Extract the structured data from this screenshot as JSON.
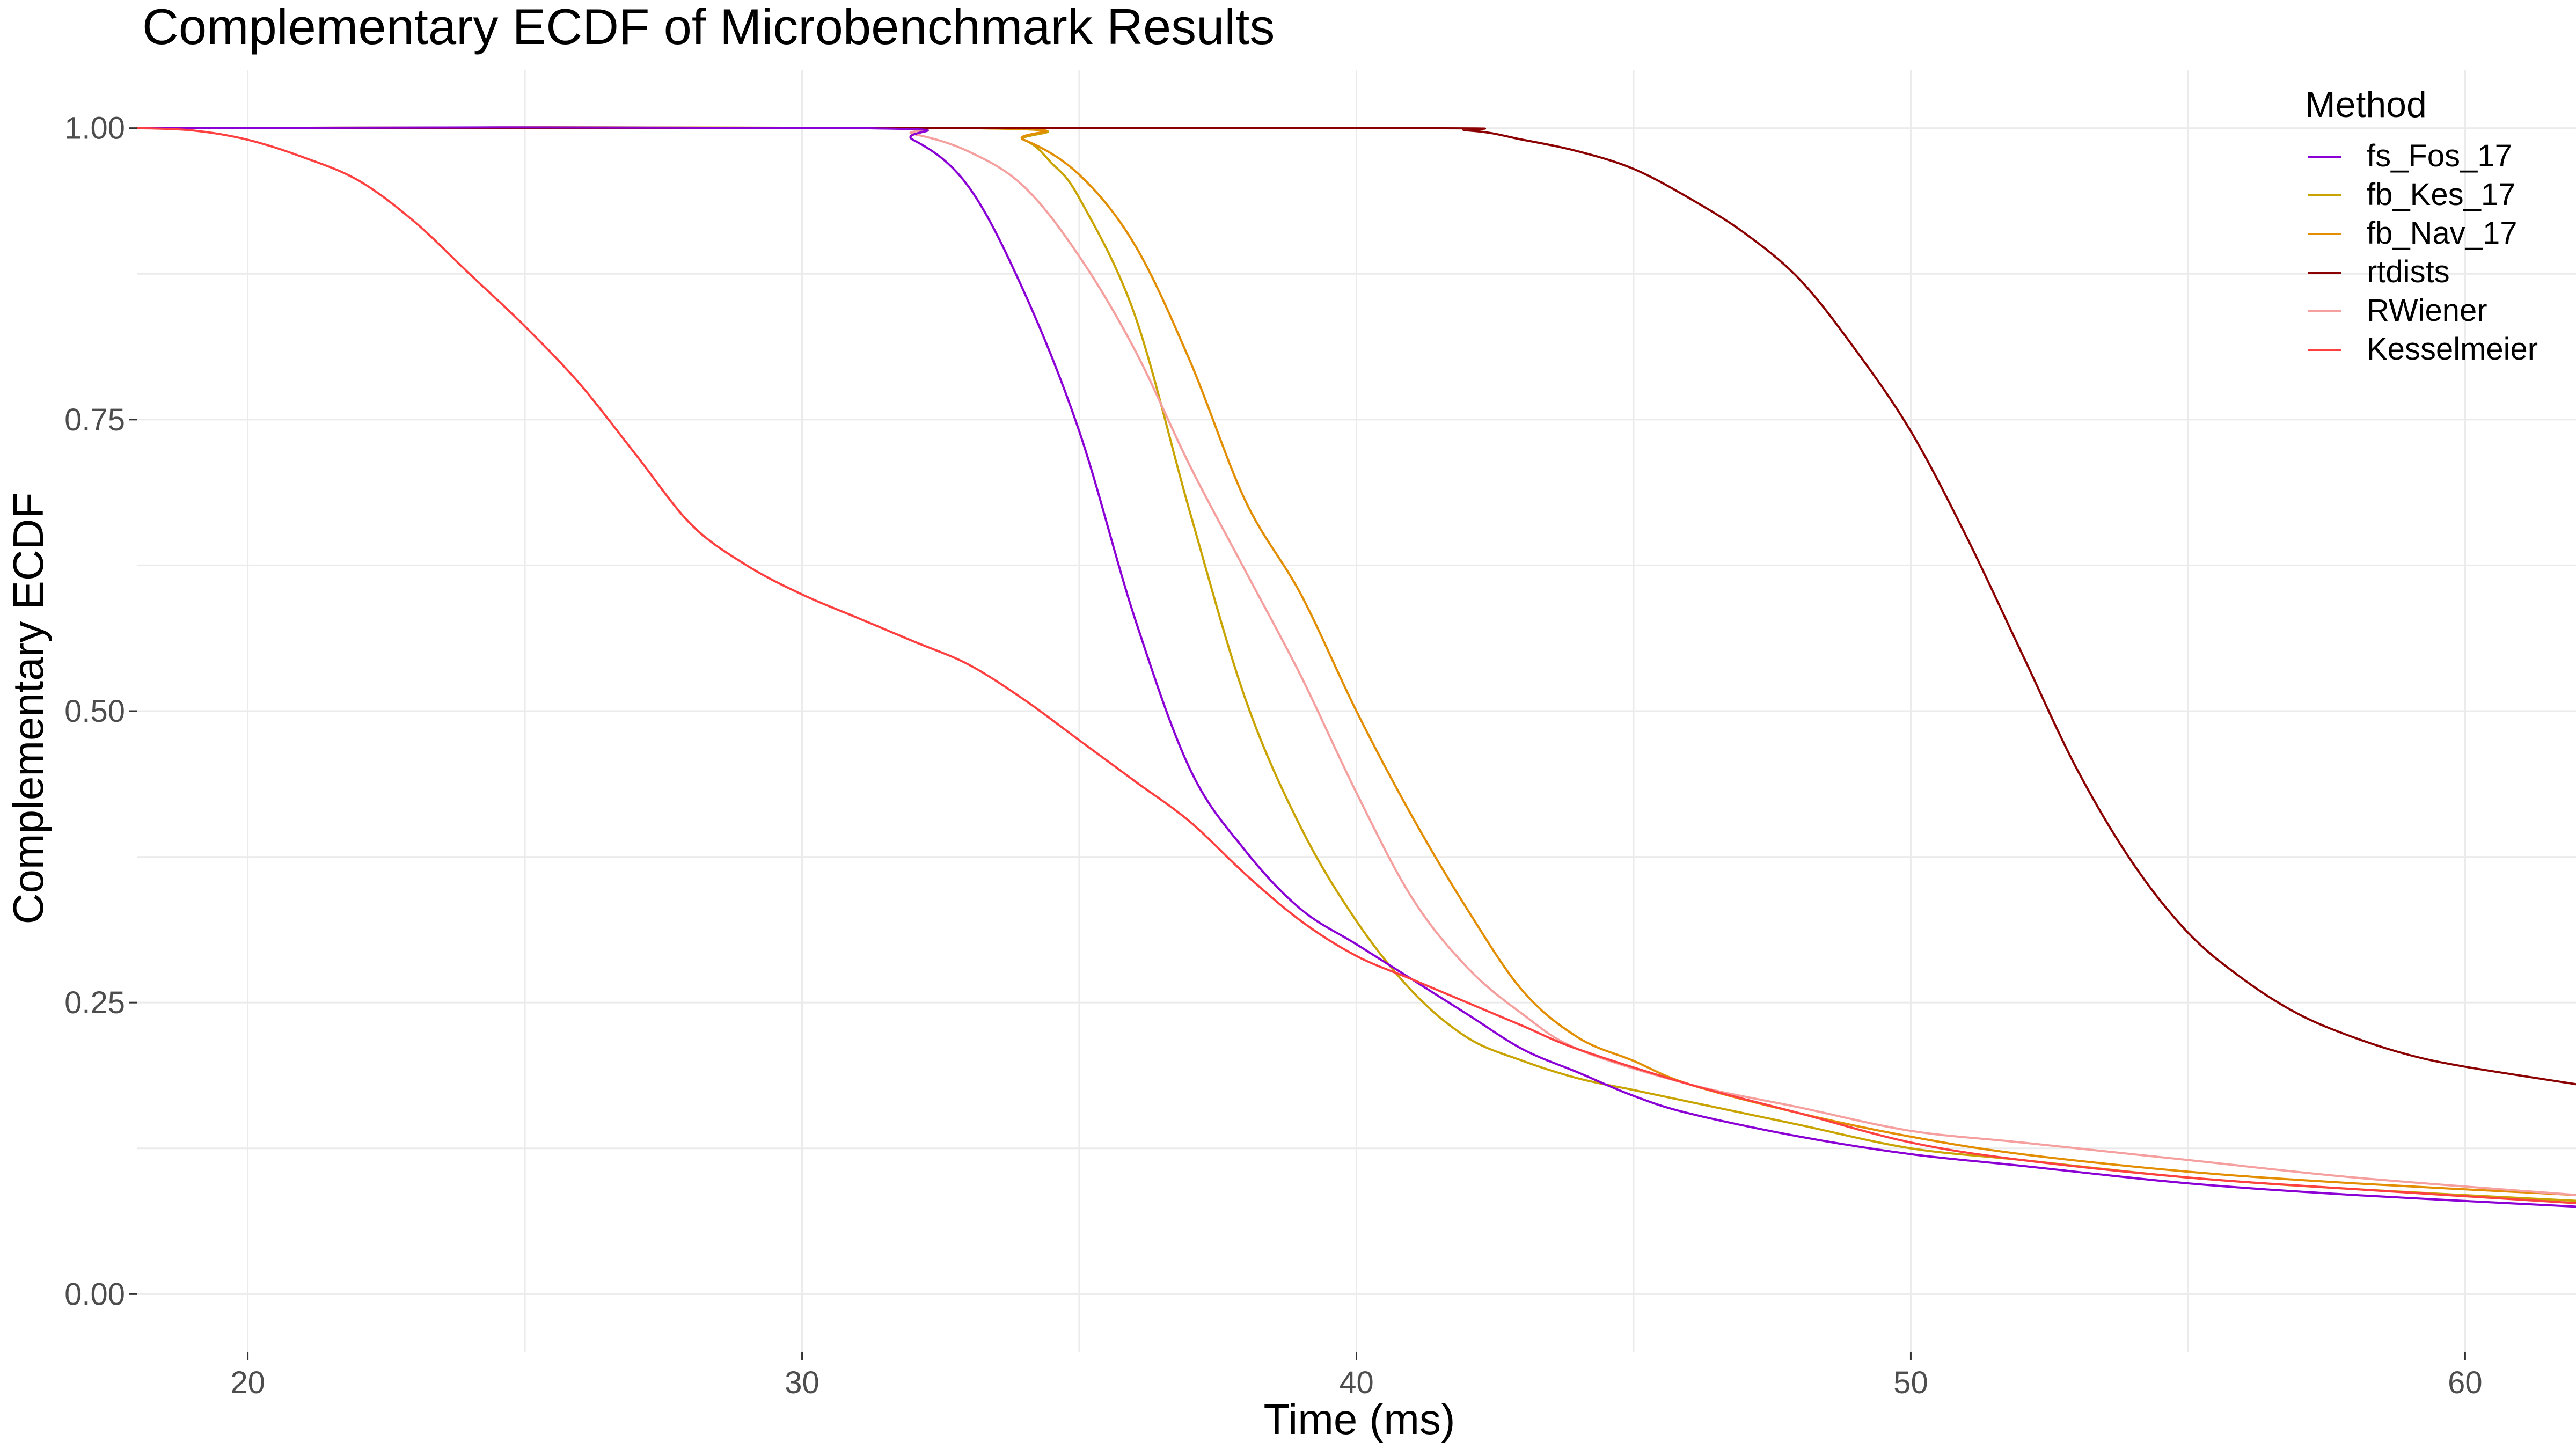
{
  "chart_data": {
    "type": "line",
    "title": "Complementary ECDF of Microbenchmark Results",
    "xlabel": "Time (ms)",
    "ylabel": "Complementary ECDF",
    "xlim": [
      18,
      62
    ],
    "ylim": [
      -0.05,
      1.05
    ],
    "x_ticks": [
      20,
      30,
      40,
      50,
      60
    ],
    "x_tick_labels": [
      "20",
      "30",
      "40",
      "50",
      "60"
    ],
    "y_ticks": [
      0,
      0.25,
      0.5,
      0.75,
      1
    ],
    "y_tick_labels": [
      "0.00",
      "0.25",
      "0.50",
      "0.75",
      "1.00"
    ],
    "grid": true,
    "legend": {
      "title": "Method",
      "position": "top-right"
    },
    "series": [
      {
        "name": "fs_Fos_17",
        "color": "#8b00d4",
        "x": [
          18,
          31,
          32,
          33,
          34,
          35,
          36,
          37,
          38,
          39,
          40,
          41,
          42,
          43,
          44,
          45,
          46,
          48,
          50,
          52,
          55,
          58,
          62
        ],
        "y": [
          1.0,
          1.0,
          0.99,
          0.95,
          0.86,
          0.74,
          0.58,
          0.45,
          0.38,
          0.33,
          0.3,
          0.27,
          0.24,
          0.21,
          0.19,
          0.17,
          0.155,
          0.135,
          0.12,
          0.11,
          0.095,
          0.085,
          0.075
        ]
      },
      {
        "name": "fb_Kes_17",
        "color": "#c9a400",
        "x": [
          18,
          33,
          34,
          34.5,
          35,
          36,
          37,
          38,
          39,
          40,
          41,
          42,
          43,
          44,
          45,
          46,
          48,
          50,
          52,
          55,
          58,
          62
        ],
        "y": [
          1.0,
          1.0,
          0.99,
          0.97,
          0.94,
          0.84,
          0.67,
          0.51,
          0.4,
          0.32,
          0.26,
          0.22,
          0.2,
          0.185,
          0.175,
          0.165,
          0.145,
          0.125,
          0.115,
          0.1,
          0.09,
          0.08
        ]
      },
      {
        "name": "fb_Nav_17",
        "color": "#e38d00",
        "x": [
          18,
          33,
          34,
          35,
          36,
          37,
          38,
          39,
          40,
          41,
          42,
          43,
          44,
          45,
          46,
          48,
          50,
          52,
          55,
          58,
          62
        ],
        "y": [
          1.0,
          1.0,
          0.99,
          0.96,
          0.9,
          0.8,
          0.68,
          0.6,
          0.5,
          0.41,
          0.33,
          0.26,
          0.22,
          0.2,
          0.18,
          0.155,
          0.135,
          0.12,
          0.105,
          0.095,
          0.085
        ]
      },
      {
        "name": "rtdists",
        "color": "#8b0000",
        "x": [
          18,
          40,
          42,
          43,
          44,
          45,
          46,
          47,
          48,
          49,
          50,
          51,
          52,
          53,
          54,
          55,
          56,
          57,
          58,
          59,
          60,
          62
        ],
        "y": [
          1.0,
          1.0,
          0.998,
          0.99,
          0.98,
          0.965,
          0.94,
          0.91,
          0.87,
          0.81,
          0.74,
          0.65,
          0.55,
          0.45,
          0.37,
          0.31,
          0.27,
          0.24,
          0.22,
          0.205,
          0.195,
          0.18
        ]
      },
      {
        "name": "RWiener",
        "color": "#f59f9f",
        "x": [
          18,
          31,
          32,
          33,
          34,
          35,
          36,
          37,
          38,
          39,
          40,
          41,
          42,
          43,
          44,
          46,
          48,
          50,
          52,
          55,
          58,
          62
        ],
        "y": [
          1.0,
          1.0,
          0.995,
          0.98,
          0.95,
          0.89,
          0.81,
          0.71,
          0.62,
          0.53,
          0.43,
          0.34,
          0.28,
          0.24,
          0.21,
          0.18,
          0.16,
          0.14,
          0.13,
          0.115,
          0.1,
          0.085
        ]
      },
      {
        "name": "Kesselmeier",
        "color": "#ff4040",
        "x": [
          18,
          19,
          20,
          21,
          22,
          23,
          24,
          25,
          26,
          27,
          28,
          29,
          30,
          31,
          32,
          33,
          34,
          35,
          36,
          37,
          38,
          39,
          40,
          41,
          42,
          43,
          44,
          46,
          48,
          50,
          52,
          55,
          58,
          62
        ],
        "y": [
          1.0,
          0.998,
          0.99,
          0.975,
          0.955,
          0.92,
          0.875,
          0.83,
          0.78,
          0.72,
          0.66,
          0.625,
          0.6,
          0.58,
          0.56,
          0.54,
          0.51,
          0.475,
          0.44,
          0.405,
          0.36,
          0.32,
          0.29,
          0.27,
          0.25,
          0.23,
          0.21,
          0.18,
          0.155,
          0.13,
          0.115,
          0.1,
          0.09,
          0.078
        ]
      }
    ]
  }
}
